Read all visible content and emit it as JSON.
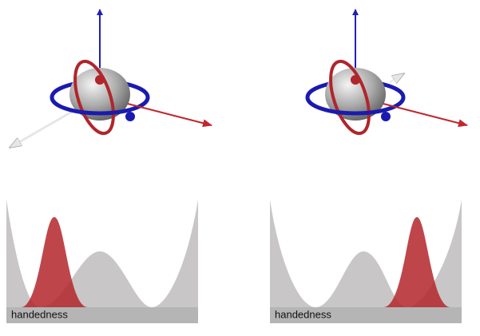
{
  "panels": [
    {
      "label": "handedness"
    },
    {
      "label": "handedness"
    }
  ]
}
